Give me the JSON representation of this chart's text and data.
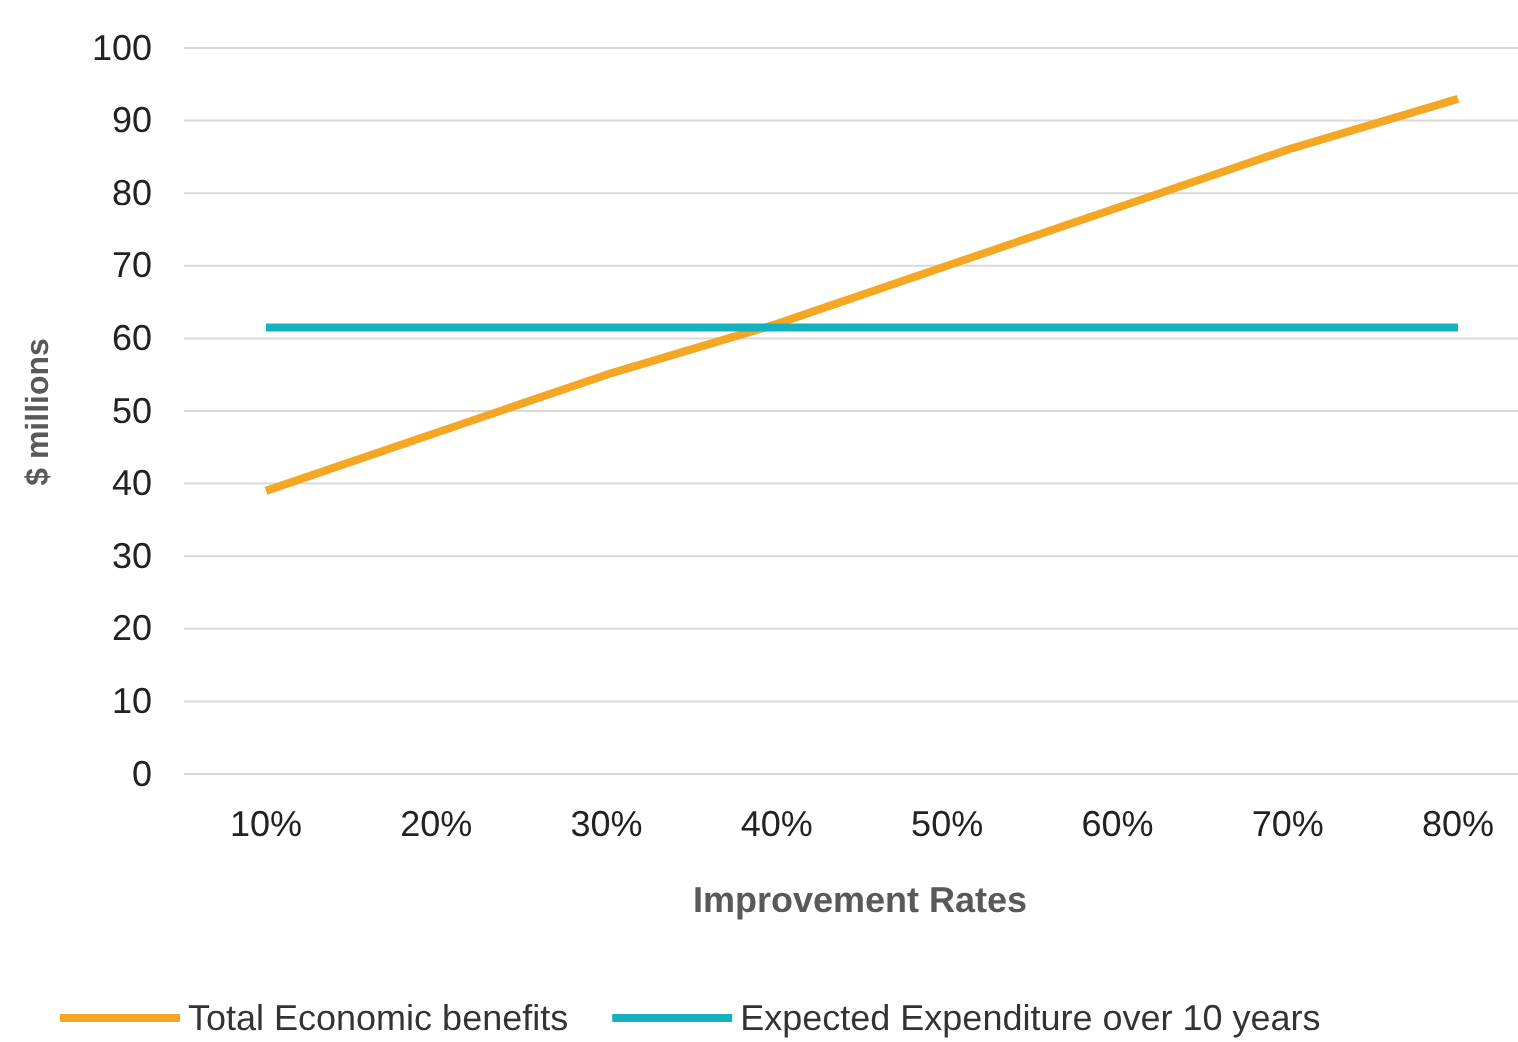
{
  "chart_data": {
    "type": "line",
    "xlabel": "Improvement Rates",
    "ylabel": "$ millions",
    "categories": [
      "10%",
      "20%",
      "30%",
      "40%",
      "50%",
      "60%",
      "70%",
      "80%"
    ],
    "series": [
      {
        "name": "Total Economic benefits",
        "color": "#f5a623",
        "values": [
          39,
          47,
          55,
          62,
          70,
          78,
          86,
          93
        ]
      },
      {
        "name": "Expected Expenditure over 10 years",
        "color": "#14b1bf",
        "values": [
          61.5,
          61.5,
          61.5,
          61.5,
          61.5,
          61.5,
          61.5,
          61.5
        ]
      }
    ],
    "ylim": [
      0,
      100
    ],
    "yticks": [
      0,
      10,
      20,
      30,
      40,
      50,
      60,
      70,
      80,
      90,
      100
    ],
    "grid": "y",
    "legend": "bottom",
    "marker": "none",
    "line_style": "solid"
  }
}
